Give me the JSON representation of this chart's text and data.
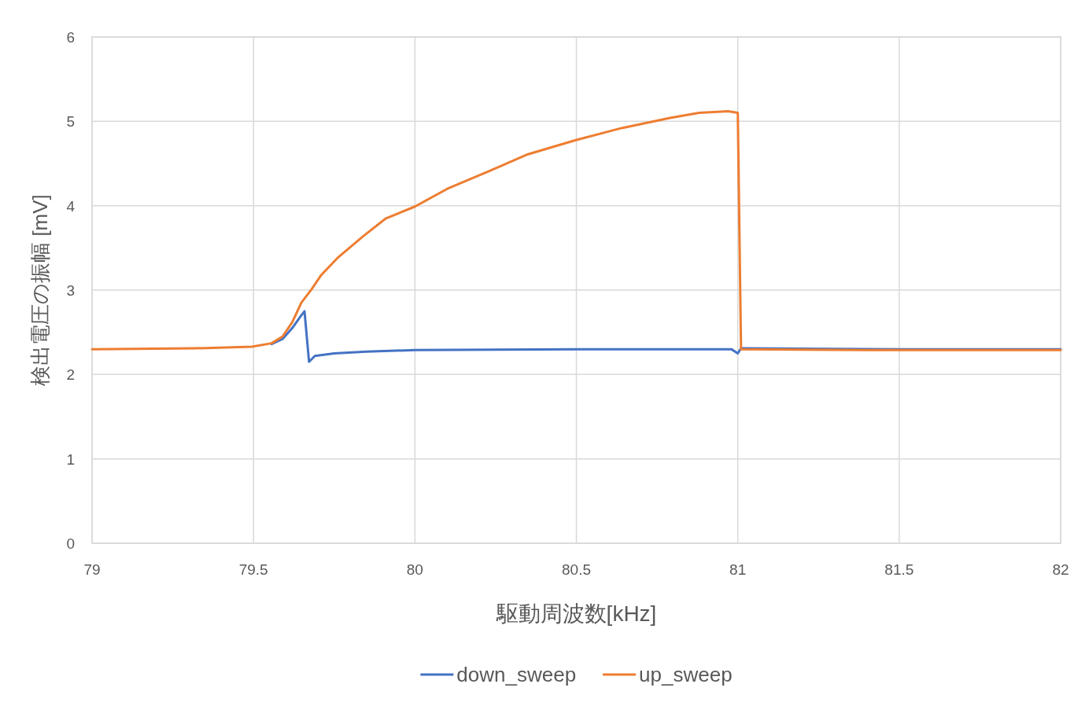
{
  "chart_data": {
    "type": "line",
    "xlabel": "駆動周波数[kHz]",
    "ylabel": "検出電圧の振幅 [mV]",
    "xlim": [
      79,
      82
    ],
    "ylim": [
      0,
      6
    ],
    "xticks": [
      79,
      79.5,
      80,
      80.5,
      81,
      81.5,
      82
    ],
    "yticks": [
      0,
      1,
      2,
      3,
      4,
      5,
      6
    ],
    "grid": true,
    "legend": "bottom",
    "series": [
      {
        "name": "down_sweep",
        "color": "#4472c4",
        "x": [
          79.556,
          79.59,
          79.62,
          79.648,
          79.658,
          79.672,
          79.69,
          79.75,
          79.85,
          80.0,
          80.5,
          80.98,
          81.0,
          81.01,
          81.5,
          82.0
        ],
        "values": [
          2.36,
          2.42,
          2.55,
          2.7,
          2.75,
          2.15,
          2.22,
          2.25,
          2.27,
          2.29,
          2.3,
          2.3,
          2.25,
          2.31,
          2.3,
          2.3
        ]
      },
      {
        "name": "up_sweep",
        "color": "#ed7d31",
        "x": [
          79.0,
          79.32,
          79.495,
          79.556,
          79.59,
          79.62,
          79.648,
          79.68,
          79.71,
          79.76,
          79.84,
          79.91,
          80.0,
          80.1,
          80.23,
          80.35,
          80.5,
          80.64,
          80.79,
          80.88,
          80.97,
          81.0,
          81.01,
          81.4,
          82.0
        ],
        "values": [
          2.3,
          2.31,
          2.33,
          2.37,
          2.45,
          2.62,
          2.85,
          3.01,
          3.18,
          3.38,
          3.64,
          3.85,
          3.99,
          4.2,
          4.41,
          4.61,
          4.78,
          4.92,
          5.04,
          5.1,
          5.12,
          5.1,
          2.3,
          2.29,
          2.29
        ]
      }
    ]
  }
}
